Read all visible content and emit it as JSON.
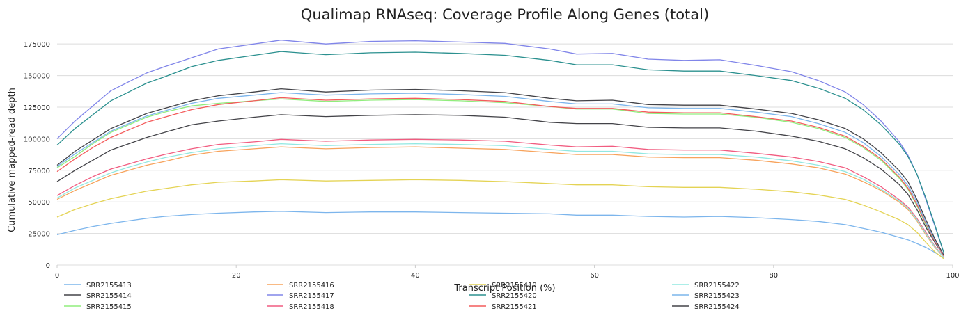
{
  "chart_data": {
    "type": "line",
    "title": "Qualimap RNAseq: Coverage Profile Along Genes (total)",
    "xlabel": "Transcript Position (%)",
    "ylabel": "Cumulative mapped-read depth",
    "xlim": [
      0,
      100
    ],
    "ylim": [
      0,
      185000
    ],
    "xticks": [
      0,
      20,
      40,
      60,
      80,
      100
    ],
    "yticks": [
      0,
      25000,
      50000,
      75000,
      100000,
      125000,
      150000,
      175000
    ],
    "ytick_labels": [
      "0",
      "25000",
      "50000",
      "75000",
      "100000",
      "125000",
      "150000",
      "175000"
    ],
    "grid": "horizontal",
    "legend_position": "bottom",
    "x": [
      0,
      2,
      4,
      6,
      8,
      10,
      12,
      15,
      18,
      22,
      25,
      30,
      35,
      40,
      45,
      50,
      55,
      58,
      62,
      66,
      70,
      74,
      78,
      82,
      85,
      88,
      90,
      92,
      94,
      95,
      96,
      97,
      98,
      99
    ],
    "series": [
      {
        "name": "SRR2155413",
        "color": "#7cb5ec",
        "values": [
          24000,
          27500,
          30500,
          33000,
          35000,
          37000,
          38500,
          40000,
          41000,
          42000,
          42500,
          41500,
          42000,
          42000,
          41500,
          41000,
          40500,
          39500,
          39500,
          38500,
          38000,
          38500,
          37500,
          36000,
          34500,
          32000,
          29000,
          26000,
          22000,
          20000,
          17000,
          14000,
          10000,
          5500
        ]
      },
      {
        "name": "SRR2155414",
        "color": "#434348",
        "values": [
          66000,
          75000,
          83000,
          91000,
          96000,
          101000,
          105000,
          111000,
          114000,
          117000,
          119000,
          117500,
          118500,
          119000,
          118500,
          117000,
          113000,
          112000,
          112000,
          109000,
          108500,
          108500,
          106000,
          102000,
          98000,
          92000,
          85000,
          76000,
          64000,
          56000,
          44000,
          30000,
          18000,
          7500
        ]
      },
      {
        "name": "SRR2155415",
        "color": "#90ed7d",
        "values": [
          77000,
          86000,
          96000,
          105000,
          111000,
          117000,
          121000,
          126000,
          128000,
          130000,
          131500,
          129500,
          130500,
          131000,
          130000,
          128500,
          125500,
          123500,
          123500,
          120000,
          119500,
          119500,
          117000,
          113000,
          108000,
          101000,
          93000,
          83000,
          69000,
          60000,
          47000,
          32000,
          19000,
          7500
        ]
      },
      {
        "name": "SRR2155416",
        "color": "#f7a35c",
        "values": [
          52000,
          59000,
          65000,
          71000,
          75000,
          79000,
          82000,
          87000,
          90000,
          92000,
          93500,
          92000,
          93000,
          93500,
          92500,
          91500,
          89000,
          87500,
          87500,
          85500,
          85000,
          85000,
          83000,
          80000,
          77000,
          72000,
          66000,
          59000,
          50000,
          44000,
          35000,
          24000,
          14000,
          6000
        ]
      },
      {
        "name": "SRR2155417",
        "color": "#8085e9",
        "values": [
          100000,
          114000,
          126000,
          138000,
          145000,
          152000,
          157000,
          164000,
          171000,
          175000,
          178000,
          175000,
          177000,
          177500,
          176500,
          175500,
          171000,
          167000,
          167500,
          163000,
          162000,
          162500,
          158000,
          153000,
          146000,
          137000,
          127000,
          114000,
          98000,
          87000,
          72000,
          52000,
          31000,
          10000
        ]
      },
      {
        "name": "SRR2155418",
        "color": "#f15c80",
        "values": [
          55000,
          63000,
          70000,
          76000,
          80000,
          84000,
          87500,
          92000,
          95500,
          97500,
          99500,
          98000,
          99000,
          99500,
          99000,
          98000,
          95000,
          93500,
          94000,
          91500,
          91000,
          91000,
          88500,
          85500,
          82000,
          77000,
          70000,
          62000,
          52000,
          46000,
          37000,
          26000,
          15000,
          6500
        ]
      },
      {
        "name": "SRR2155419",
        "color": "#e4d354",
        "values": [
          38000,
          44000,
          48500,
          52500,
          55500,
          58500,
          60500,
          63500,
          65500,
          66500,
          67500,
          66500,
          67000,
          67500,
          67000,
          66000,
          64500,
          63500,
          63500,
          62000,
          61500,
          61500,
          60000,
          58000,
          55500,
          52000,
          47500,
          42000,
          36000,
          32000,
          26000,
          18000,
          10500,
          5000
        ]
      },
      {
        "name": "SRR2155420",
        "color": "#2b908f",
        "values": [
          95000,
          108000,
          119000,
          130000,
          137000,
          144000,
          149000,
          157000,
          162000,
          166000,
          169000,
          166500,
          168000,
          168500,
          167500,
          166000,
          162000,
          158500,
          158500,
          154500,
          153500,
          153500,
          150000,
          146000,
          140000,
          132000,
          123000,
          111000,
          96000,
          86000,
          72000,
          53000,
          32000,
          10000
        ]
      },
      {
        "name": "SRR2155421",
        "color": "#f45b5b",
        "values": [
          74000,
          84000,
          93000,
          101000,
          107000,
          113000,
          117000,
          123000,
          127000,
          130000,
          132500,
          130500,
          131500,
          132000,
          131000,
          129500,
          125500,
          124000,
          124000,
          121000,
          120500,
          120500,
          117500,
          114000,
          109000,
          102000,
          94000,
          84000,
          70000,
          61000,
          48000,
          33000,
          19000,
          7500
        ]
      },
      {
        "name": "SRR2155422",
        "color": "#91e8e1",
        "values": [
          53000,
          61000,
          67000,
          73000,
          77500,
          81500,
          85000,
          89000,
          92000,
          94500,
          96000,
          94500,
          95500,
          96000,
          95500,
          94500,
          91500,
          90000,
          90000,
          88000,
          87500,
          87500,
          85500,
          82500,
          79000,
          74000,
          68000,
          60000,
          51000,
          45000,
          36000,
          25000,
          14500,
          6000
        ]
      },
      {
        "name": "SRR2155423",
        "color": "#7cb5ec",
        "values": [
          78000,
          88000,
          97000,
          106000,
          112000,
          118000,
          122000,
          128000,
          132000,
          134500,
          136500,
          134500,
          135500,
          136000,
          135000,
          133500,
          129500,
          127500,
          127500,
          124500,
          124000,
          124000,
          121000,
          117500,
          112000,
          105000,
          97000,
          86000,
          72000,
          63000,
          50000,
          34000,
          20000,
          8000
        ]
      },
      {
        "name": "SRR2155424",
        "color": "#434348",
        "values": [
          79000,
          90000,
          99000,
          108000,
          114000,
          120000,
          124000,
          130000,
          134000,
          137000,
          139500,
          137000,
          138500,
          139000,
          138000,
          136500,
          132000,
          130000,
          130500,
          127000,
          126500,
          126500,
          123500,
          120000,
          115000,
          108000,
          100000,
          89000,
          75000,
          66000,
          52000,
          36000,
          21000,
          8000
        ]
      }
    ]
  }
}
